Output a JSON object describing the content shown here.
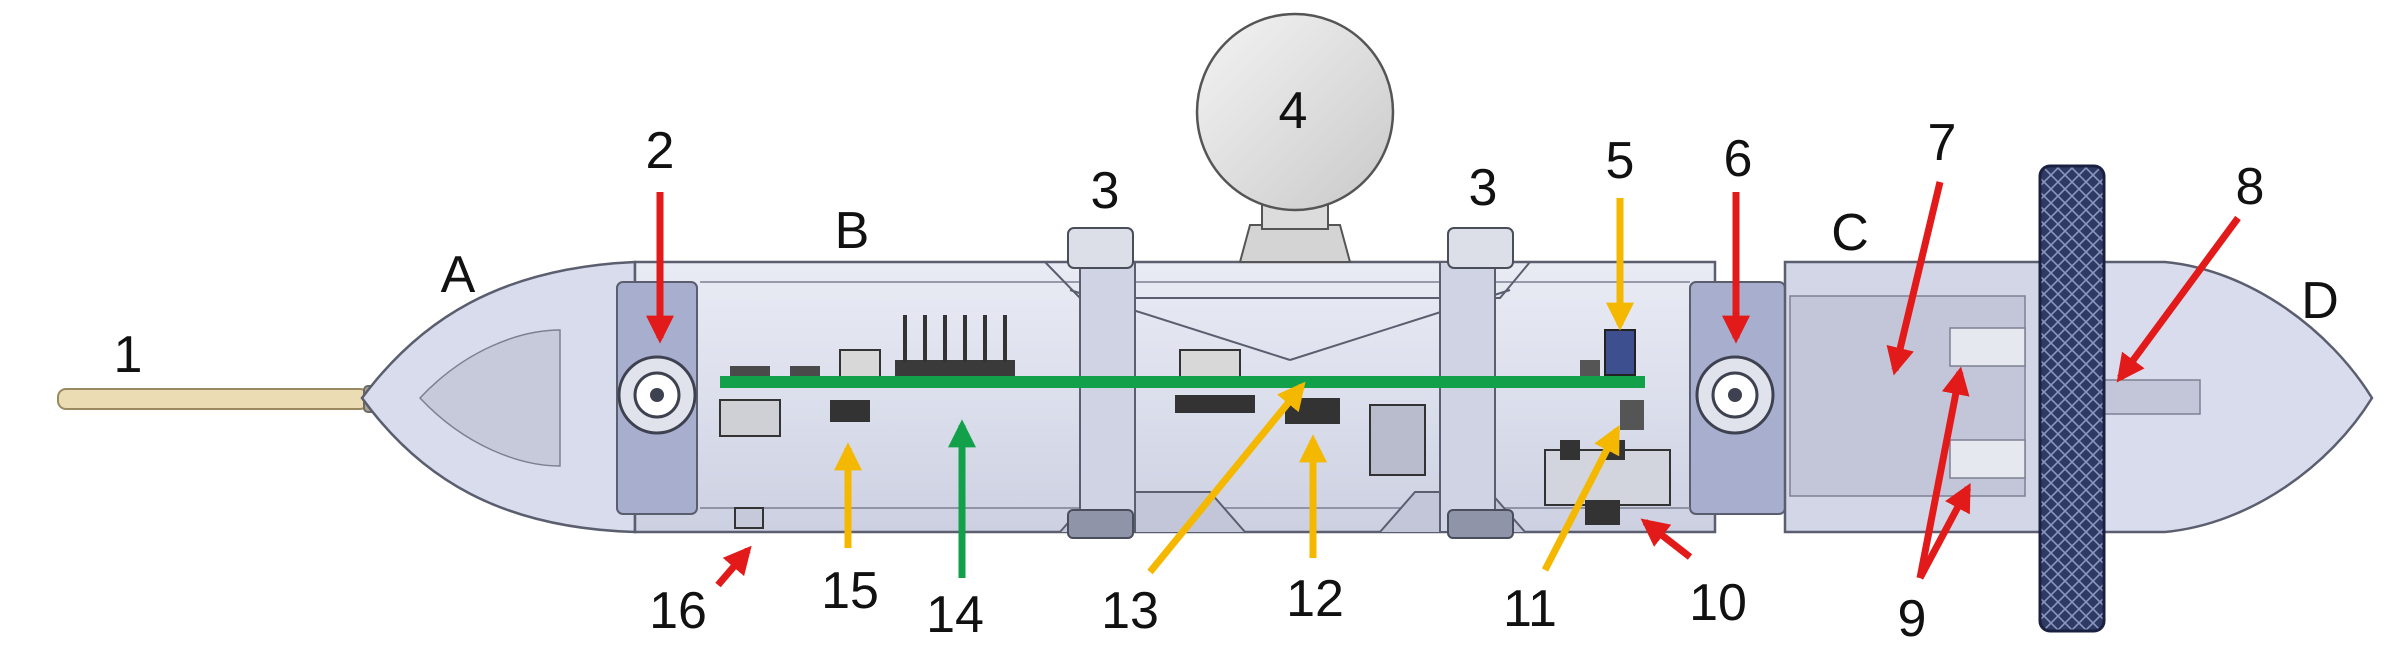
{
  "colors": {
    "background": "#ffffff",
    "housing_fill": "#dfe2ee",
    "housing_stroke": "#5a5e6e",
    "end_cap_fill": "#d8dcec",
    "pcb_green": "#12a14a",
    "arrow_red": "#e31a1a",
    "arrow_yellow": "#f5b800",
    "arrow_green": "#12a14a",
    "wheel_dark": "#2e3a63",
    "rod_tan": "#ecdcb4"
  },
  "section_labels": {
    "A": "A",
    "B": "B",
    "C": "C",
    "D": "D"
  },
  "part_labels": {
    "p1": "1",
    "p2": "2",
    "p3": "3",
    "p4": "4",
    "p5": "5",
    "p6": "6",
    "p7": "7",
    "p8": "8",
    "p9": "9",
    "p10": "10",
    "p11": "11",
    "p12": "12",
    "p13": "13",
    "p14": "14",
    "p15": "15",
    "p16": "16"
  }
}
